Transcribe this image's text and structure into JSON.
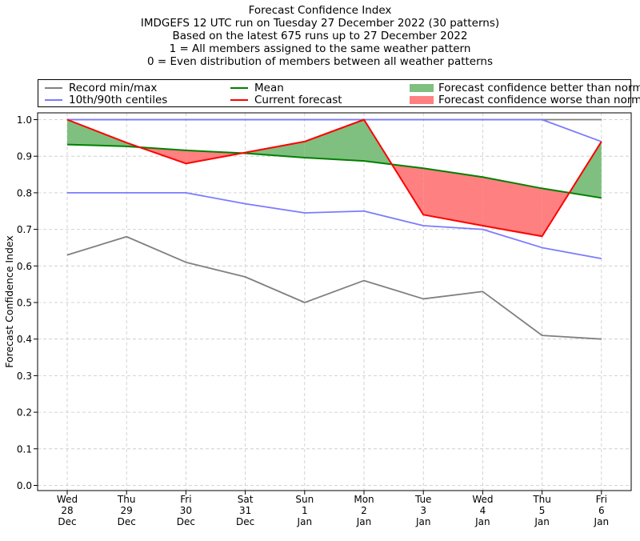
{
  "chart_data": {
    "type": "line",
    "title": "Forecast Confidence Index",
    "subtitle_lines": [
      "IMDGEFS 12 UTC run on Tuesday 27 December 2022 (30 patterns)",
      "Based on the latest 675 runs up to 27 December 2022",
      "1 = All members assigned to the same weather pattern",
      "0 = Even distribution of members between all weather patterns"
    ],
    "ylabel": "Forecast Confidence Index",
    "xlabel": "",
    "ylim": [
      0,
      1.0
    ],
    "yticks": [
      "0.0",
      "0.1",
      "0.2",
      "0.3",
      "0.4",
      "0.5",
      "0.6",
      "0.7",
      "0.8",
      "0.9",
      "1.0"
    ],
    "grid": true,
    "legend_position": "top",
    "categories": [
      [
        "Wed",
        "28",
        "Dec"
      ],
      [
        "Thu",
        "29",
        "Dec"
      ],
      [
        "Fri",
        "30",
        "Dec"
      ],
      [
        "Sat",
        "31",
        "Dec"
      ],
      [
        "Sun",
        "1",
        "Jan"
      ],
      [
        "Mon",
        "2",
        "Jan"
      ],
      [
        "Tue",
        "3",
        "Jan"
      ],
      [
        "Wed",
        "4",
        "Jan"
      ],
      [
        "Thu",
        "5",
        "Jan"
      ],
      [
        "Fri",
        "6",
        "Jan"
      ]
    ],
    "series": [
      {
        "name": "Record min/max",
        "color": "#808080",
        "role": "record_min",
        "values": [
          0.63,
          0.68,
          0.61,
          0.57,
          0.5,
          0.56,
          0.51,
          0.53,
          0.41,
          0.4
        ]
      },
      {
        "name": "Record min/max",
        "color": "#808080",
        "role": "record_max",
        "values": [
          1.0,
          1.0,
          1.0,
          1.0,
          1.0,
          1.0,
          1.0,
          1.0,
          1.0,
          1.0
        ]
      },
      {
        "name": "10th/90th centiles",
        "color": "#7b7bff",
        "role": "p10",
        "values": [
          0.8,
          0.8,
          0.8,
          0.77,
          0.745,
          0.75,
          0.71,
          0.7,
          0.65,
          0.62
        ]
      },
      {
        "name": "10th/90th centiles",
        "color": "#7b7bff",
        "role": "p90",
        "values": [
          1.0,
          1.0,
          1.0,
          1.0,
          1.0,
          1.0,
          1.0,
          1.0,
          1.0,
          0.94
        ]
      },
      {
        "name": "Mean",
        "color": "#008000",
        "role": "mean",
        "values": [
          0.932,
          0.927,
          0.916,
          0.908,
          0.896,
          0.887,
          0.867,
          0.843,
          0.812,
          0.786
        ]
      },
      {
        "name": "Current forecast",
        "color": "#ff0000",
        "role": "current",
        "values": [
          1.0,
          0.937,
          0.88,
          0.91,
          0.94,
          1.0,
          0.74,
          0.71,
          0.681,
          0.94
        ]
      }
    ],
    "legend": [
      {
        "label": "Record min/max",
        "kind": "line",
        "color": "#808080"
      },
      {
        "label": "Mean",
        "kind": "line",
        "color": "#008000"
      },
      {
        "label": "Forecast confidence better than normal",
        "kind": "patch",
        "color": "#7fbf7f"
      },
      {
        "label": "10th/90th centiles",
        "kind": "line",
        "color": "#7b7bff"
      },
      {
        "label": "Current forecast",
        "kind": "line",
        "color": "#ff0000"
      },
      {
        "label": "Forecast confidence worse than normal",
        "kind": "patch",
        "color": "#ff8080"
      }
    ],
    "fill_colors": {
      "better": "#7fbf7f",
      "worse": "#ff8080"
    }
  }
}
